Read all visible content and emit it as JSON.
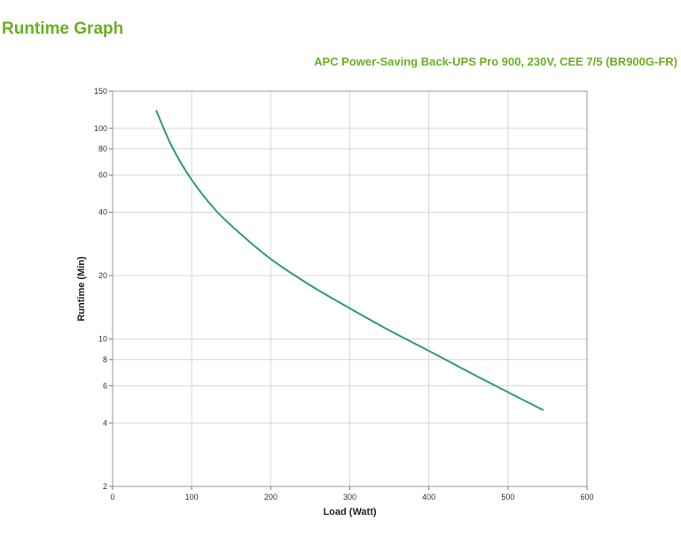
{
  "page": {
    "title": "Runtime Graph"
  },
  "chart_data": {
    "type": "line",
    "title": "APC Power-Saving Back-UPS Pro 900, 230V, CEE 7/5 (BR900G-FR)",
    "xlabel": "Load (Watt)",
    "ylabel": "Runtime (Min)",
    "xlim": [
      0,
      600
    ],
    "ylim": [
      2,
      150
    ],
    "y_scale": "log",
    "x_ticks": [
      0,
      100,
      200,
      300,
      400,
      500,
      600
    ],
    "y_ticks": [
      2,
      4,
      6,
      8,
      10,
      20,
      40,
      60,
      80,
      100,
      150
    ],
    "grid": true,
    "line_color": "#2e9e6b",
    "series": [
      {
        "x": [
          55,
          75,
          100,
          130,
          160,
          200,
          250,
          300,
          350,
          400,
          450,
          500,
          545
        ],
        "values": [
          122,
          82,
          57,
          41,
          32,
          24,
          18,
          14,
          11,
          8.8,
          7,
          5.6,
          4.6
        ]
      }
    ]
  }
}
